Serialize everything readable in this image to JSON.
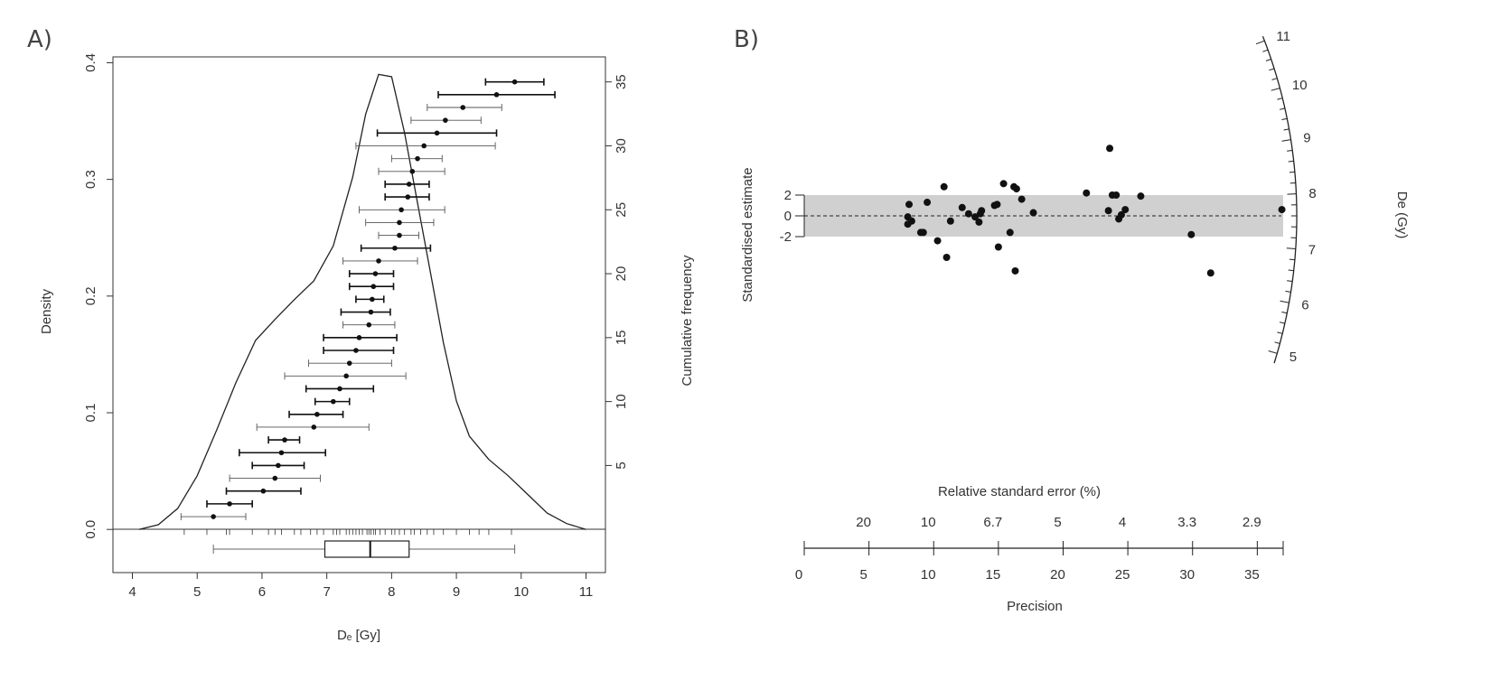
{
  "panel_a": {
    "letter": "A)",
    "ylabel_left": "Density",
    "ylabel_right": "Cumulative frequency",
    "xlabel": "Dₑ [Gy]"
  },
  "panel_b": {
    "letter": "B)",
    "ylabel": "Standardised estimate",
    "zlabel": "De (Gy)",
    "top_axis_label": "Relative standard error (%)",
    "xlabel": "Precision"
  },
  "chart_data": [
    {
      "type": "line",
      "panel": "A",
      "xlabel": "Dₑ [Gy]",
      "ylabel": "Density",
      "ylabel_right": "Cumulative frequency",
      "xlim": [
        3.7,
        11.3
      ],
      "ylim": [
        -0.037,
        0.405
      ],
      "xticks": [
        4,
        5,
        6,
        7,
        8,
        9,
        10,
        11
      ],
      "yticks": [
        "0.0",
        "0.1",
        "0.2",
        "0.3",
        "0.4"
      ],
      "right_ticks": [
        5,
        10,
        15,
        20,
        25,
        30,
        35
      ],
      "right_ylim": [
        0,
        36.5
      ],
      "grid": false,
      "density_curve": {
        "x": [
          4.1,
          4.4,
          4.7,
          5.0,
          5.3,
          5.6,
          5.9,
          6.2,
          6.5,
          6.8,
          7.1,
          7.4,
          7.6,
          7.8,
          8.0,
          8.2,
          8.4,
          8.6,
          8.8,
          9.0,
          9.2,
          9.5,
          9.8,
          10.1,
          10.4,
          10.7,
          11.0
        ],
        "y": [
          0.0,
          0.004,
          0.018,
          0.046,
          0.085,
          0.126,
          0.162,
          0.18,
          0.197,
          0.213,
          0.243,
          0.302,
          0.356,
          0.39,
          0.388,
          0.34,
          0.28,
          0.22,
          0.16,
          0.11,
          0.08,
          0.06,
          0.046,
          0.03,
          0.014,
          0.005,
          0.0
        ]
      },
      "cumulative_points": {
        "rank": [
          1,
          2,
          3,
          4,
          5,
          6,
          7,
          8,
          9,
          10,
          11,
          12,
          13,
          14,
          15,
          16,
          17,
          18,
          19,
          20,
          21,
          22,
          23,
          24,
          25,
          26,
          27,
          28,
          29,
          30,
          31,
          32,
          33,
          34,
          35
        ],
        "de": [
          5.25,
          5.5,
          6.02,
          6.2,
          6.25,
          6.3,
          6.35,
          6.8,
          6.85,
          7.1,
          7.2,
          7.3,
          7.35,
          7.45,
          7.5,
          7.65,
          7.68,
          7.7,
          7.72,
          7.75,
          7.8,
          8.05,
          8.12,
          8.12,
          8.15,
          8.25,
          8.27,
          8.32,
          8.4,
          8.5,
          8.7,
          8.83,
          9.1,
          9.62,
          9.9
        ],
        "err_low": [
          4.75,
          5.15,
          5.45,
          5.5,
          5.85,
          5.65,
          6.1,
          5.92,
          6.42,
          6.82,
          6.68,
          6.35,
          6.72,
          6.95,
          6.95,
          7.25,
          7.22,
          7.45,
          7.35,
          7.35,
          7.25,
          7.53,
          7.8,
          7.6,
          7.5,
          7.9,
          7.9,
          7.8,
          8.0,
          7.45,
          7.78,
          8.3,
          8.55,
          8.72,
          9.45
        ],
        "err_high": [
          5.75,
          5.85,
          6.6,
          6.9,
          6.65,
          6.98,
          6.58,
          7.65,
          7.25,
          7.35,
          7.72,
          8.22,
          8.0,
          8.03,
          8.08,
          8.05,
          7.98,
          7.88,
          8.03,
          8.03,
          8.4,
          8.6,
          8.42,
          8.65,
          8.82,
          8.58,
          8.58,
          8.82,
          8.78,
          9.6,
          9.62,
          9.38,
          9.7,
          10.52,
          10.35
        ],
        "thick": [
          false,
          true,
          true,
          false,
          true,
          true,
          true,
          false,
          true,
          true,
          true,
          false,
          false,
          true,
          true,
          false,
          true,
          true,
          true,
          true,
          false,
          true,
          false,
          false,
          false,
          true,
          true,
          false,
          false,
          false,
          true,
          false,
          false,
          true,
          true
        ]
      },
      "rug": [
        4.8,
        5.15,
        5.45,
        5.5,
        5.85,
        6.1,
        6.2,
        6.3,
        6.5,
        6.6,
        6.75,
        6.85,
        6.95,
        7.1,
        7.15,
        7.2,
        7.3,
        7.35,
        7.4,
        7.45,
        7.5,
        7.55,
        7.62,
        7.65,
        7.68,
        7.72,
        7.75,
        7.82,
        7.9,
        8.0,
        8.05,
        8.12,
        8.2,
        8.3,
        8.35,
        8.45,
        8.55,
        8.65,
        8.8,
        9.0,
        9.2,
        9.35,
        9.5,
        9.85
      ],
      "boxplot": {
        "whisker_low": 5.25,
        "q1": 6.97,
        "median": 7.67,
        "q3": 8.27,
        "whisker_high": 9.9
      }
    },
    {
      "type": "scatter",
      "panel": "B",
      "title": "",
      "ylabel": "Standardised estimate",
      "xlabel": "Precision",
      "zlabel": "De (Gy)",
      "top_axis_label": "Relative standard error (%)",
      "xlim": [
        0,
        37
      ],
      "xticks": [
        0,
        5,
        10,
        15,
        20,
        25,
        30,
        35
      ],
      "top_ticks": [
        {
          "label": "20",
          "precision": 5
        },
        {
          "label": "10",
          "precision": 10
        },
        {
          "label": "6.7",
          "precision": 15
        },
        {
          "label": "5",
          "precision": 20
        },
        {
          "label": "4",
          "precision": 25
        },
        {
          "label": "3.3",
          "precision": 30
        },
        {
          "label": "2.9",
          "precision": 35
        }
      ],
      "yticks": [
        2,
        0,
        -2
      ],
      "ylim": [
        -2,
        2
      ],
      "central_value_gy": 7.6,
      "z_ticks": [
        5,
        6,
        7,
        8,
        9,
        10,
        11
      ],
      "z_range": [
        4.8,
        11.1
      ],
      "band": [
        -2,
        2
      ],
      "points": {
        "precision": [
          8.0,
          8.0,
          8.1,
          8.3,
          9.0,
          9.2,
          9.5,
          10.3,
          10.8,
          11.0,
          11.3,
          12.2,
          12.7,
          13.2,
          13.5,
          13.6,
          13.7,
          14.7,
          14.9,
          15.0,
          15.4,
          15.9,
          16.2,
          16.3,
          16.4,
          16.8,
          17.7,
          21.8,
          23.5,
          23.6,
          23.8,
          24.1,
          24.3,
          24.5,
          24.8,
          26.0,
          29.9,
          31.4,
          36.9
        ],
        "z": [
          -0.1,
          -0.8,
          1.1,
          -0.5,
          -1.6,
          -1.6,
          1.3,
          -2.4,
          2.8,
          -4.0,
          -0.5,
          0.8,
          0.2,
          -0.1,
          -0.6,
          0.2,
          0.5,
          1.0,
          1.1,
          -3.0,
          3.1,
          -1.6,
          2.8,
          -5.3,
          2.6,
          1.6,
          0.3,
          2.2,
          0.5,
          6.5,
          2.0,
          2.0,
          -0.3,
          0.1,
          0.6,
          1.9,
          -1.8,
          -5.5,
          0.6
        ]
      }
    }
  ]
}
